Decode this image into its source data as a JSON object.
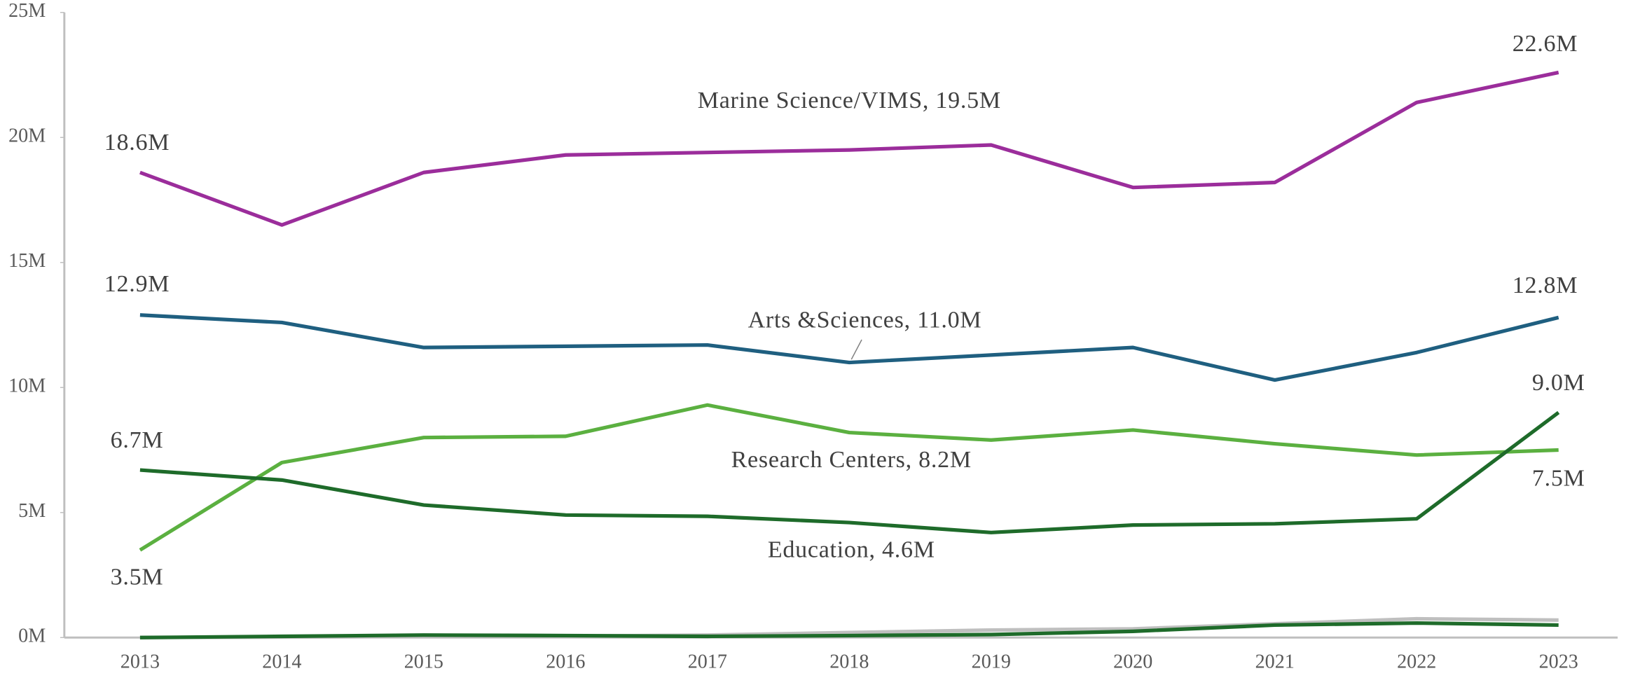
{
  "chart_data": {
    "type": "line",
    "categories": [
      "2013",
      "2014",
      "2015",
      "2016",
      "2017",
      "2018",
      "2019",
      "2020",
      "2021",
      "2022",
      "2023"
    ],
    "series": [
      {
        "color": "#bfbfbf",
        "values": [
          0,
          0.02,
          0.05,
          0.05,
          0.1,
          0.2,
          0.3,
          0.35,
          0.55,
          0.75,
          0.7
        ]
      },
      {
        "color": "#1e6b2a",
        "values": [
          0,
          0.05,
          0.1,
          0.08,
          0.05,
          0.08,
          0.12,
          0.25,
          0.5,
          0.58,
          0.5
        ]
      },
      {
        "color": "#9b2d9b",
        "values": [
          18.6,
          16.5,
          18.6,
          19.3,
          19.4,
          19.5,
          19.7,
          18.0,
          18.2,
          21.4,
          22.6
        ],
        "value_labels": [
          "18.6M",
          null,
          null,
          null,
          null,
          "Marine Science/VIMS, 19.5M",
          null,
          null,
          null,
          null,
          "22.6M"
        ]
      },
      {
        "color": "#1f5f80",
        "values": [
          12.9,
          12.6,
          11.6,
          11.65,
          11.7,
          11.0,
          11.3,
          11.6,
          10.3,
          11.4,
          12.8
        ],
        "value_labels": [
          "12.9M",
          null,
          null,
          null,
          null,
          "Arts &Sciences, 11.0M",
          null,
          null,
          null,
          null,
          "12.8M"
        ]
      },
      {
        "color": "#5bb040",
        "values": [
          3.5,
          7.0,
          8.0,
          8.05,
          9.3,
          8.2,
          7.9,
          8.3,
          7.75,
          7.3,
          7.5
        ],
        "value_labels": [
          "3.5M",
          null,
          null,
          null,
          null,
          "Research Centers, 8.2M",
          null,
          null,
          null,
          null,
          "7.5M"
        ]
      },
      {
        "color": "#1e6b2a",
        "values": [
          6.7,
          6.3,
          5.3,
          4.9,
          4.85,
          4.6,
          4.2,
          4.5,
          4.55,
          4.75,
          9.0
        ],
        "value_labels": [
          "6.7M",
          null,
          null,
          null,
          null,
          "Education, 4.6M",
          null,
          null,
          null,
          null,
          "9.0M"
        ]
      }
    ],
    "ylim": [
      0,
      25
    ],
    "yticks": [
      {
        "value": 0,
        "label": "0M"
      },
      {
        "value": 5,
        "label": "5M"
      },
      {
        "value": 10,
        "label": "10M"
      },
      {
        "value": 15,
        "label": "15M"
      },
      {
        "value": 20,
        "label": "20M"
      },
      {
        "value": 25,
        "label": "25M"
      }
    ],
    "grid": false
  }
}
